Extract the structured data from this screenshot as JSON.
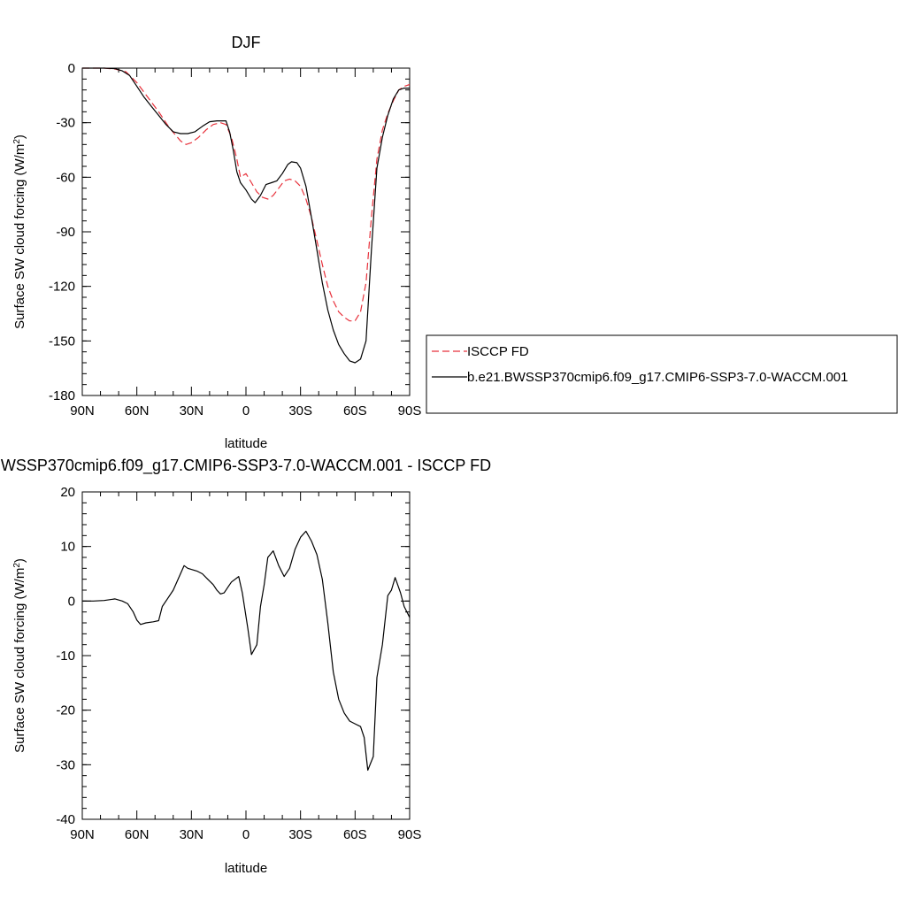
{
  "chart_data": [
    {
      "type": "line",
      "title": "DJF",
      "xlabel": "latitude",
      "ylabel": "Surface SW cloud forcing (W/m",
      "ylabel_sup": "2",
      "ylabel_close": ")",
      "xlim": [
        90,
        -90
      ],
      "ylim": [
        -180,
        0
      ],
      "x_ticks": [
        90,
        60,
        30,
        0,
        -30,
        -60,
        -90
      ],
      "x_tick_labels": [
        "90N",
        "60N",
        "30N",
        "0",
        "30S",
        "60S",
        "90S"
      ],
      "y_ticks": [
        0,
        -30,
        -60,
        -90,
        -120,
        -150,
        -180
      ],
      "y_tick_labels": [
        "0",
        "-30",
        "-60",
        "-90",
        "-120",
        "-150",
        "-180"
      ],
      "grid": false,
      "legend": {
        "position": "right",
        "entries": [
          "ISCCP FD",
          "b.e21.BWSSP370cmip6.f09_g17.CMIP6-SSP3-7.0-WACCM.001"
        ]
      },
      "series": [
        {
          "name": "ISCCP FD",
          "color": "#e8323c",
          "style": "dashed",
          "points": [
            [
              90,
              0
            ],
            [
              84,
              0
            ],
            [
              78,
              0
            ],
            [
              72,
              -0.5
            ],
            [
              66,
              -2
            ],
            [
              60,
              -8
            ],
            [
              54,
              -16
            ],
            [
              48,
              -24
            ],
            [
              42,
              -33
            ],
            [
              36,
              -40
            ],
            [
              33,
              -42
            ],
            [
              30,
              -41
            ],
            [
              26,
              -38
            ],
            [
              22,
              -34
            ],
            [
              18,
              -31
            ],
            [
              14,
              -30
            ],
            [
              11,
              -31
            ],
            [
              8,
              -38
            ],
            [
              5,
              -50
            ],
            [
              3,
              -60
            ],
            [
              0,
              -58
            ],
            [
              -3,
              -63
            ],
            [
              -6,
              -68
            ],
            [
              -9,
              -71
            ],
            [
              -12,
              -72
            ],
            [
              -15,
              -70
            ],
            [
              -18,
              -66
            ],
            [
              -21,
              -62
            ],
            [
              -24,
              -61
            ],
            [
              -27,
              -62
            ],
            [
              -30,
              -65
            ],
            [
              -33,
              -72
            ],
            [
              -36,
              -82
            ],
            [
              -39,
              -95
            ],
            [
              -42,
              -108
            ],
            [
              -45,
              -120
            ],
            [
              -48,
              -128
            ],
            [
              -51,
              -134
            ],
            [
              -54,
              -137
            ],
            [
              -57,
              -139
            ],
            [
              -60,
              -139
            ],
            [
              -63,
              -134
            ],
            [
              -66,
              -118
            ],
            [
              -69,
              -82
            ],
            [
              -72,
              -50
            ],
            [
              -75,
              -34
            ],
            [
              -78,
              -25
            ],
            [
              -81,
              -18
            ],
            [
              -84,
              -12
            ],
            [
              -87,
              -10
            ],
            [
              -90,
              -9
            ]
          ]
        },
        {
          "name": "b.e21.BWSSP370cmip6.f09_g17.CMIP6-SSP3-7.0-WACCM.001",
          "color": "#000000",
          "style": "solid",
          "points": [
            [
              90,
              0
            ],
            [
              84,
              0
            ],
            [
              78,
              0
            ],
            [
              72,
              -0.3
            ],
            [
              68,
              -1.5
            ],
            [
              64,
              -4
            ],
            [
              60,
              -10
            ],
            [
              56,
              -16
            ],
            [
              52,
              -21
            ],
            [
              48,
              -26
            ],
            [
              44,
              -31
            ],
            [
              40,
              -35
            ],
            [
              36,
              -36
            ],
            [
              32,
              -36
            ],
            [
              28,
              -35
            ],
            [
              24,
              -32
            ],
            [
              20,
              -29.5
            ],
            [
              16,
              -29
            ],
            [
              13,
              -29
            ],
            [
              11,
              -29
            ],
            [
              9,
              -35
            ],
            [
              7,
              -45
            ],
            [
              5,
              -57
            ],
            [
              3,
              -63
            ],
            [
              0,
              -67
            ],
            [
              -3,
              -72
            ],
            [
              -5,
              -74
            ],
            [
              -8,
              -70
            ],
            [
              -11,
              -64
            ],
            [
              -14,
              -63
            ],
            [
              -17,
              -62
            ],
            [
              -20,
              -58
            ],
            [
              -23,
              -53
            ],
            [
              -25,
              -51.5
            ],
            [
              -28,
              -52
            ],
            [
              -30,
              -55
            ],
            [
              -33,
              -65
            ],
            [
              -36,
              -82
            ],
            [
              -39,
              -100
            ],
            [
              -42,
              -118
            ],
            [
              -45,
              -133
            ],
            [
              -48,
              -144
            ],
            [
              -51,
              -152
            ],
            [
              -54,
              -157
            ],
            [
              -57,
              -161
            ],
            [
              -60,
              -162
            ],
            [
              -63,
              -160
            ],
            [
              -66,
              -150
            ],
            [
              -69,
              -100
            ],
            [
              -72,
              -55
            ],
            [
              -75,
              -38
            ],
            [
              -78,
              -26
            ],
            [
              -81,
              -17
            ],
            [
              -84,
              -12
            ],
            [
              -87,
              -11
            ],
            [
              -90,
              -11
            ]
          ]
        }
      ]
    },
    {
      "type": "line",
      "title": "WSSP370cmip6.f09_g17.CMIP6-SSP3-7.0-WACCM.001 - ISCCP FD",
      "xlabel": "latitude",
      "ylabel": "Surface SW cloud forcing (W/m",
      "ylabel_sup": "2",
      "ylabel_close": ")",
      "xlim": [
        90,
        -90
      ],
      "ylim": [
        -40,
        20
      ],
      "x_ticks": [
        90,
        60,
        30,
        0,
        -30,
        -60,
        -90
      ],
      "x_tick_labels": [
        "90N",
        "60N",
        "30N",
        "0",
        "30S",
        "60S",
        "90S"
      ],
      "y_ticks": [
        20,
        10,
        0,
        -10,
        -20,
        -30,
        -40
      ],
      "y_tick_labels": [
        "20",
        "10",
        "0",
        "-10",
        "-20",
        "-30",
        "-40"
      ],
      "grid": false,
      "series": [
        {
          "color": "#000000",
          "style": "solid",
          "points": [
            [
              90,
              0
            ],
            [
              84,
              0
            ],
            [
              78,
              0.1
            ],
            [
              72,
              0.4
            ],
            [
              68,
              0
            ],
            [
              65,
              -0.5
            ],
            [
              62,
              -2
            ],
            [
              60,
              -3.5
            ],
            [
              58,
              -4.3
            ],
            [
              55,
              -4
            ],
            [
              51,
              -3.8
            ],
            [
              48,
              -3.6
            ],
            [
              46,
              -1
            ],
            [
              43,
              0.5
            ],
            [
              40,
              2
            ],
            [
              38,
              3.5
            ],
            [
              36,
              5
            ],
            [
              34,
              6.5
            ],
            [
              32,
              6
            ],
            [
              30,
              5.8
            ],
            [
              27,
              5.5
            ],
            [
              24,
              5
            ],
            [
              21,
              4
            ],
            [
              18,
              3
            ],
            [
              16,
              2
            ],
            [
              14,
              1.3
            ],
            [
              12,
              1.5
            ],
            [
              10,
              2.5
            ],
            [
              8,
              3.5
            ],
            [
              4,
              4.5
            ],
            [
              2,
              1.5
            ],
            [
              -1,
              -5
            ],
            [
              -3,
              -9.8
            ],
            [
              -6,
              -8
            ],
            [
              -8,
              -1
            ],
            [
              -10,
              3
            ],
            [
              -12,
              8
            ],
            [
              -15,
              9.2
            ],
            [
              -18,
              6.5
            ],
            [
              -21,
              4.5
            ],
            [
              -24,
              6
            ],
            [
              -27,
              9.5
            ],
            [
              -30,
              11.7
            ],
            [
              -33,
              12.8
            ],
            [
              -36,
              11
            ],
            [
              -39,
              8.5
            ],
            [
              -42,
              4
            ],
            [
              -45,
              -4
            ],
            [
              -48,
              -13
            ],
            [
              -51,
              -18
            ],
            [
              -54,
              -20.5
            ],
            [
              -57,
              -22
            ],
            [
              -60,
              -22.5
            ],
            [
              -63,
              -23
            ],
            [
              -65,
              -25
            ],
            [
              -67,
              -31
            ],
            [
              -70,
              -28.5
            ],
            [
              -72,
              -14
            ],
            [
              -75,
              -8
            ],
            [
              -78,
              1
            ],
            [
              -80,
              2
            ],
            [
              -82,
              4.3
            ],
            [
              -85,
              1.5
            ],
            [
              -87,
              -1
            ],
            [
              -90,
              -3
            ]
          ]
        }
      ]
    }
  ]
}
